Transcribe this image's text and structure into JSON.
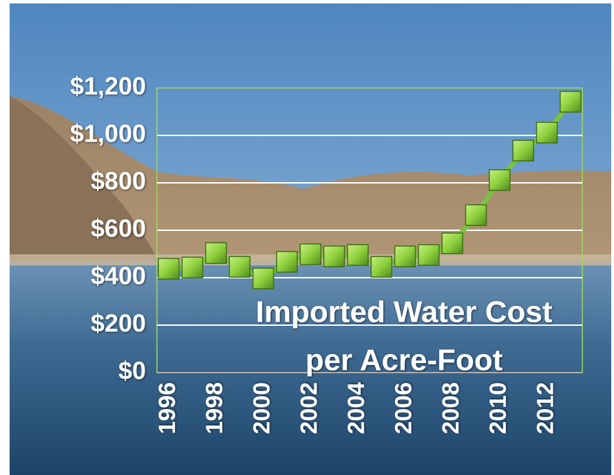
{
  "chart_data": {
    "type": "line",
    "title": [
      "Imported Water Cost",
      "per Acre-Foot"
    ],
    "categories": [
      "1996",
      null,
      "1998",
      null,
      "2000",
      null,
      "2002",
      null,
      "2004",
      null,
      "2006",
      null,
      "2008",
      null,
      "2010",
      null,
      "2012",
      null
    ],
    "values": [
      438,
      443,
      504,
      446,
      397,
      467,
      499,
      490,
      496,
      446,
      490,
      496,
      545,
      664,
      812,
      936,
      1012,
      1142
    ],
    "color": "#7ac143",
    "ylim": [
      0,
      1200
    ],
    "yticks": [
      {
        "value": 0,
        "label": "$0"
      },
      {
        "value": 200,
        "label": "$200"
      },
      {
        "value": 400,
        "label": "$400"
      },
      {
        "value": 600,
        "label": "$600"
      },
      {
        "value": 800,
        "label": "$800"
      },
      {
        "value": 1000,
        "label": "$1,000"
      },
      {
        "value": 1200,
        "label": "$1,200"
      }
    ],
    "grid": true
  }
}
